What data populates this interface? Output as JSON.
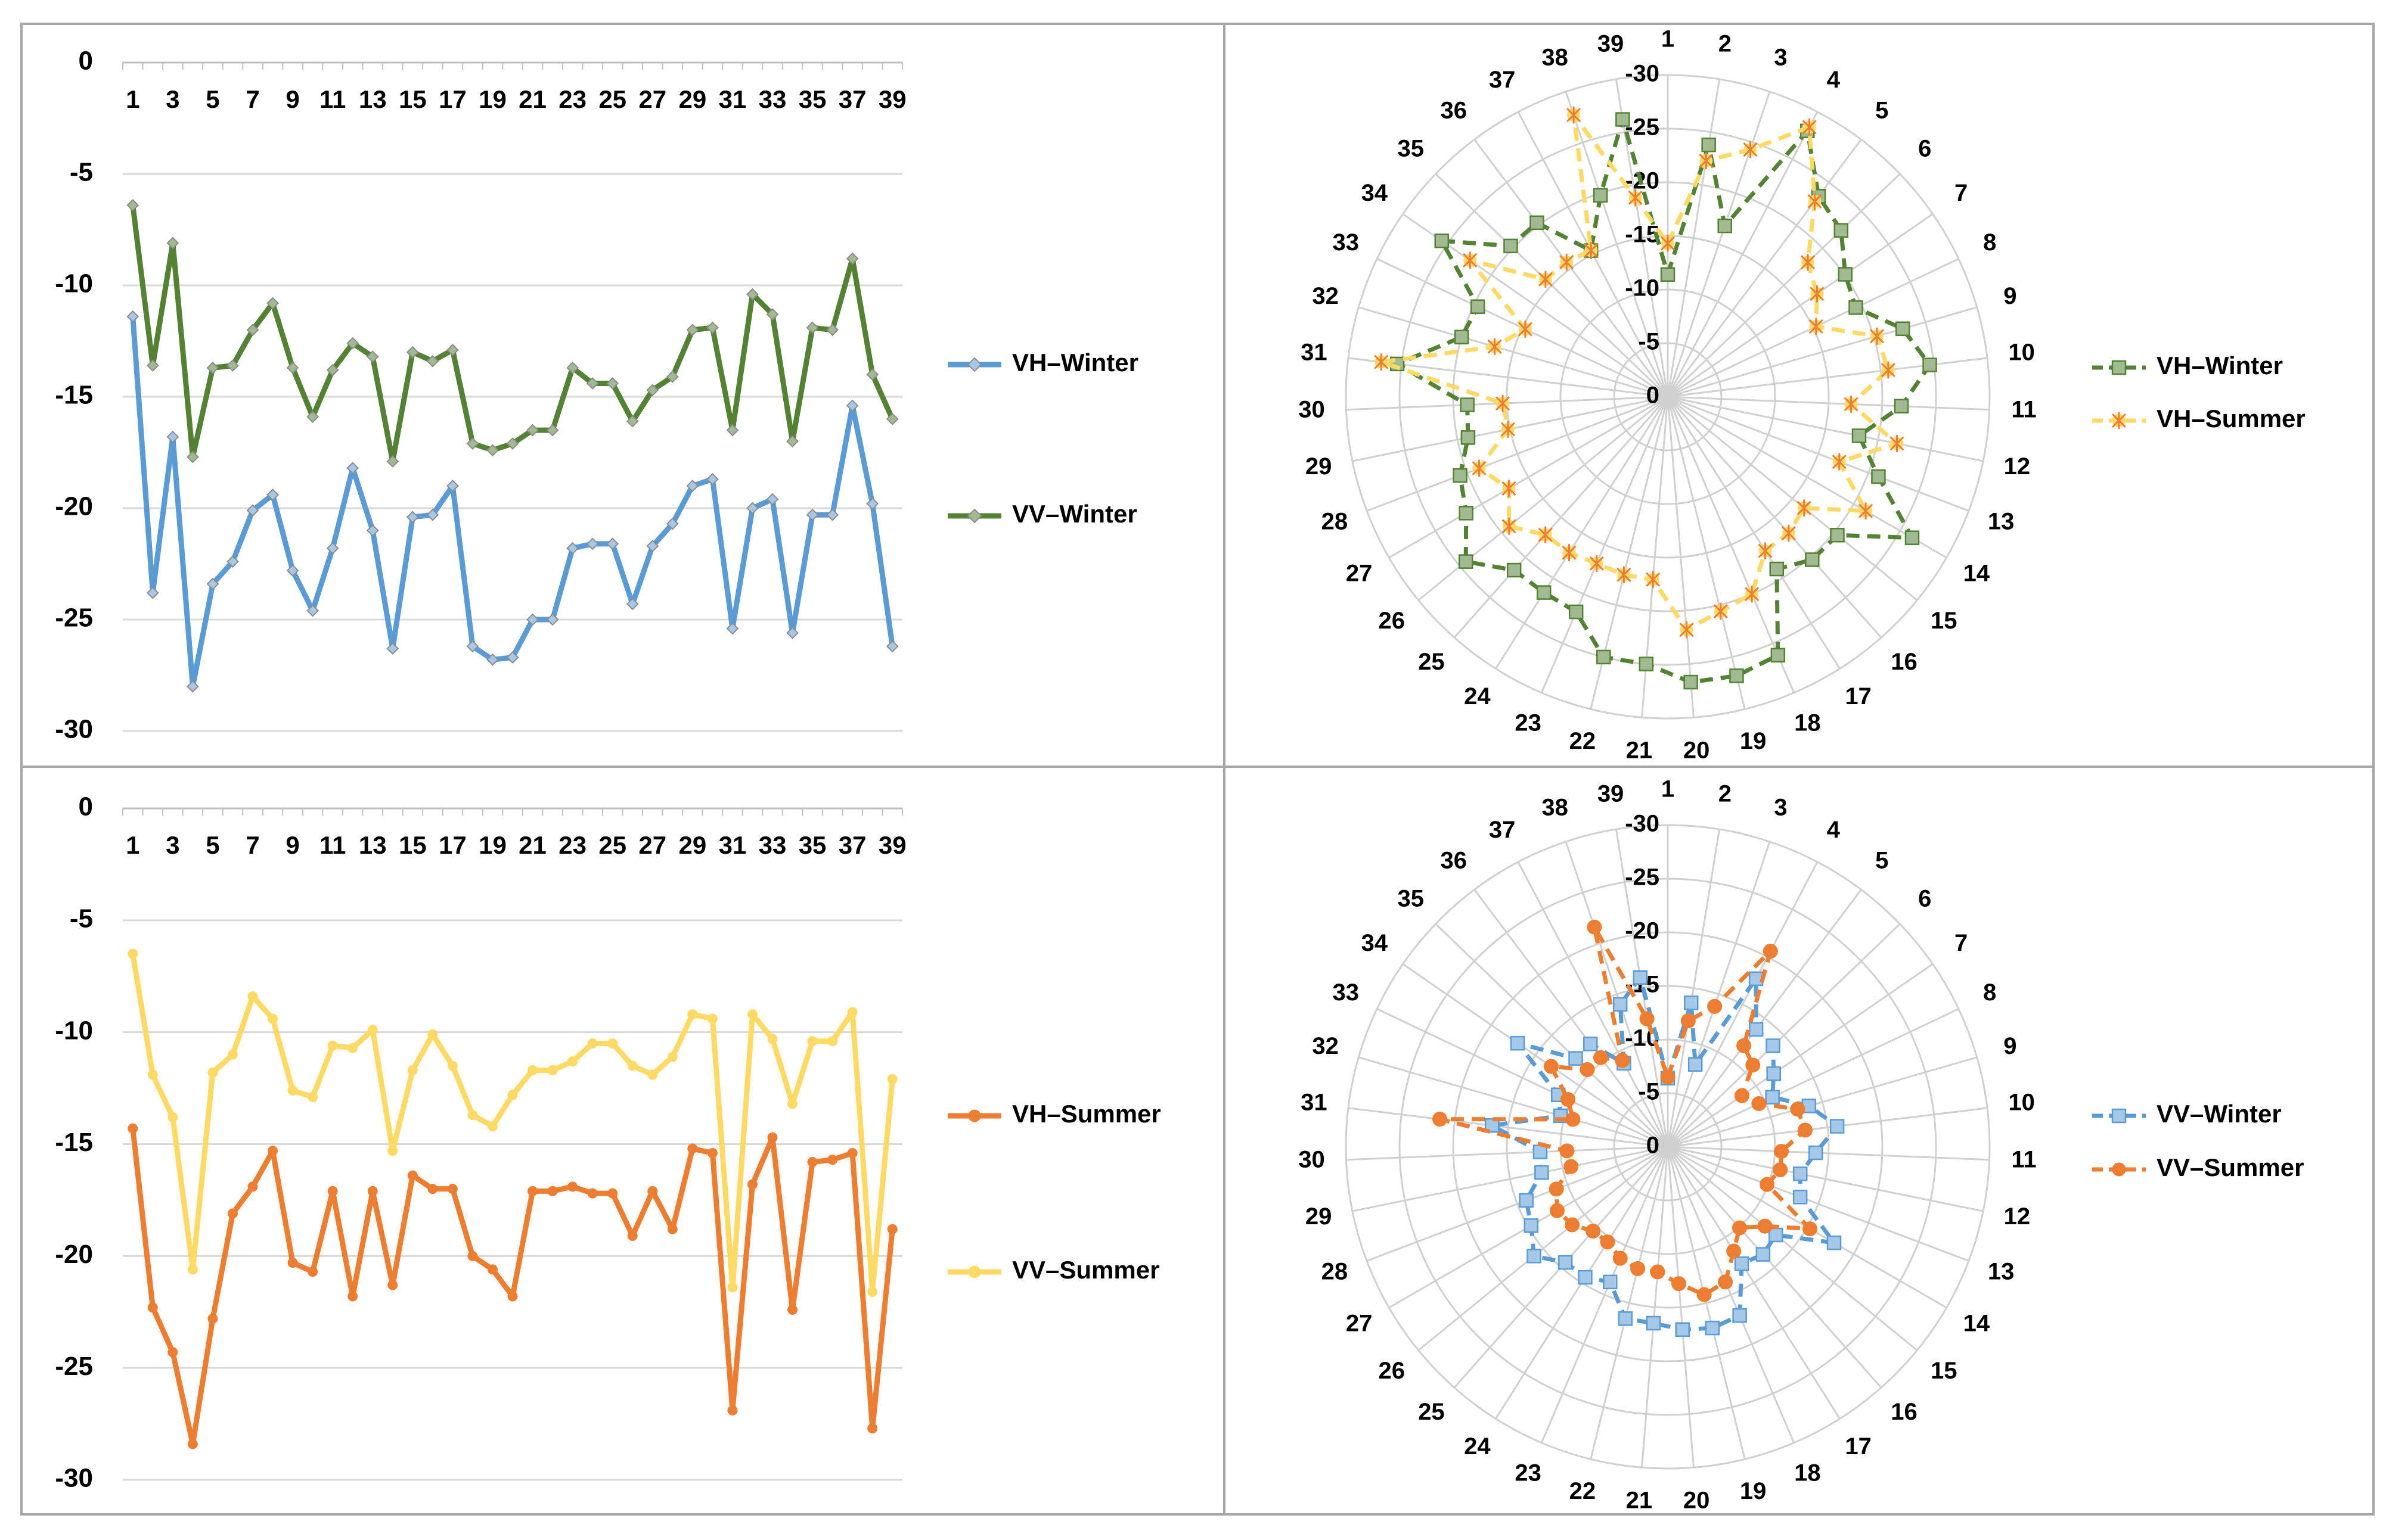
{
  "colors": {
    "vh_winter_line": "#5b9bd5",
    "vv_winter_line": "#548235",
    "vh_summer_line": "#ed7d31",
    "vv_summer_line": "#ffd966",
    "radar_vh_winter": "#548235",
    "radar_vh_summer": "#ffd966",
    "radar_vv_winter": "#5b9bd5",
    "radar_vv_summer": "#ed7d31",
    "grid": "#d0d0d0",
    "frame": "#a6a6a6"
  },
  "chart_data": [
    {
      "type": "line",
      "x": [
        1,
        2,
        3,
        4,
        5,
        6,
        7,
        8,
        9,
        10,
        11,
        12,
        13,
        14,
        15,
        16,
        17,
        18,
        19,
        20,
        21,
        22,
        23,
        24,
        25,
        26,
        27,
        28,
        29,
        30,
        31,
        32,
        33,
        34,
        35,
        36,
        37,
        38,
        39
      ],
      "x_tick_labels": [
        "1",
        "3",
        "5",
        "7",
        "9",
        "11",
        "13",
        "15",
        "17",
        "19",
        "21",
        "23",
        "25",
        "27",
        "29",
        "31",
        "33",
        "35",
        "37",
        "39"
      ],
      "ylim": [
        -30,
        0
      ],
      "y_ticks": [
        "0",
        "-5",
        "-10",
        "-15",
        "-20",
        "-25",
        "-30"
      ],
      "x_axis_position": "top",
      "legend_position": "right",
      "series": [
        {
          "name": "VH–Winter",
          "color_key": "vh_winter_line",
          "marker": "diamond",
          "values": [
            -11.4,
            -23.8,
            -16.8,
            -28.0,
            -23.4,
            -22.4,
            -20.1,
            -19.4,
            -22.8,
            -24.6,
            -21.8,
            -18.2,
            -21.0,
            -26.3,
            -20.4,
            -20.3,
            -19.0,
            -26.2,
            -26.8,
            -26.7,
            -25.0,
            -25.0,
            -21.8,
            -21.6,
            -21.6,
            -24.3,
            -21.7,
            -20.7,
            -19.0,
            -18.7,
            -25.4,
            -20.0,
            -19.6,
            -25.6,
            -20.3,
            -20.3,
            -15.4,
            -19.8,
            -26.2
          ]
        },
        {
          "name": "VV–Winter",
          "color_key": "vv_winter_line",
          "marker": "diamond",
          "values": [
            -6.4,
            -13.6,
            -8.1,
            -17.7,
            -13.7,
            -13.6,
            -12.0,
            -10.8,
            -13.7,
            -15.9,
            -13.8,
            -12.6,
            -13.2,
            -17.9,
            -13.0,
            -13.4,
            -12.9,
            -17.1,
            -17.4,
            -17.1,
            -16.5,
            -16.5,
            -13.7,
            -14.4,
            -14.4,
            -16.1,
            -14.7,
            -14.1,
            -12.0,
            -11.9,
            -16.5,
            -10.4,
            -11.3,
            -17.0,
            -11.9,
            -12.0,
            -8.8,
            -14.0,
            -16.0
          ]
        }
      ]
    },
    {
      "type": "radar",
      "categories": [
        "1",
        "2",
        "3",
        "4",
        "5",
        "6",
        "7",
        "8",
        "9",
        "10",
        "11",
        "12",
        "13",
        "14",
        "15",
        "16",
        "17",
        "18",
        "19",
        "20",
        "21",
        "22",
        "23",
        "24",
        "25",
        "26",
        "27",
        "28",
        "29",
        "30",
        "31",
        "32",
        "33",
        "34",
        "35",
        "36",
        "37",
        "38",
        "39"
      ],
      "r_axis": {
        "min": 0,
        "max": -30,
        "step": -5,
        "labels": [
          "0",
          "-5",
          "-10",
          "-15",
          "-20",
          "-25",
          "-30"
        ]
      },
      "legend_position": "right",
      "series": [
        {
          "name": "VH–Winter",
          "color_key": "radar_vh_winter",
          "marker": "square",
          "values": [
            -11.4,
            -23.8,
            -16.8,
            -28.0,
            -23.4,
            -22.4,
            -20.1,
            -19.4,
            -22.8,
            -24.6,
            -21.8,
            -18.2,
            -21.0,
            -26.3,
            -20.4,
            -20.3,
            -19.0,
            -26.2,
            -26.8,
            -26.7,
            -25.0,
            -25.0,
            -21.8,
            -21.6,
            -21.6,
            -24.3,
            -21.7,
            -20.7,
            -19.0,
            -18.7,
            -25.4,
            -20.0,
            -19.6,
            -25.6,
            -20.3,
            -20.3,
            -15.4,
            -19.8,
            -26.2
          ]
        },
        {
          "name": "VH–Summer",
          "color_key": "radar_vh_summer",
          "marker": "star",
          "values": [
            -14.3,
            -22.3,
            -24.3,
            -28.4,
            -22.8,
            -18.1,
            -16.9,
            -15.3,
            -20.3,
            -20.7,
            -17.1,
            -21.8,
            -17.1,
            -21.3,
            -16.4,
            -17.0,
            -17.0,
            -20.0,
            -20.6,
            -21.8,
            -17.1,
            -17.1,
            -16.9,
            -17.2,
            -17.2,
            -19.1,
            -17.1,
            -18.8,
            -15.2,
            -15.4,
            -26.9,
            -16.8,
            -14.7,
            -22.4,
            -15.8,
            -15.7,
            -15.4,
            -27.7,
            -18.8
          ]
        }
      ]
    },
    {
      "type": "line",
      "x": [
        1,
        2,
        3,
        4,
        5,
        6,
        7,
        8,
        9,
        10,
        11,
        12,
        13,
        14,
        15,
        16,
        17,
        18,
        19,
        20,
        21,
        22,
        23,
        24,
        25,
        26,
        27,
        28,
        29,
        30,
        31,
        32,
        33,
        34,
        35,
        36,
        37,
        38,
        39
      ],
      "x_tick_labels": [
        "1",
        "3",
        "5",
        "7",
        "9",
        "11",
        "13",
        "15",
        "17",
        "19",
        "21",
        "23",
        "25",
        "27",
        "29",
        "31",
        "33",
        "35",
        "37",
        "39"
      ],
      "ylim": [
        -30,
        0
      ],
      "y_ticks": [
        "0",
        "-5",
        "-10",
        "-15",
        "-20",
        "-25",
        "-30"
      ],
      "x_axis_position": "top",
      "legend_position": "right",
      "series": [
        {
          "name": "VH–Summer",
          "color_key": "vh_summer_line",
          "marker": "circle",
          "values": [
            -14.3,
            -22.3,
            -24.3,
            -28.4,
            -22.8,
            -18.1,
            -16.9,
            -15.3,
            -20.3,
            -20.7,
            -17.1,
            -21.8,
            -17.1,
            -21.3,
            -16.4,
            -17.0,
            -17.0,
            -20.0,
            -20.6,
            -21.8,
            -17.1,
            -17.1,
            -16.9,
            -17.2,
            -17.2,
            -19.1,
            -17.1,
            -18.8,
            -15.2,
            -15.4,
            -26.9,
            -16.8,
            -14.7,
            -22.4,
            -15.8,
            -15.7,
            -15.4,
            -27.7,
            -18.8
          ]
        },
        {
          "name": "VV–Summer",
          "color_key": "vv_summer_line",
          "marker": "circle",
          "values": [
            -6.5,
            -11.9,
            -13.8,
            -20.6,
            -11.8,
            -11.0,
            -8.4,
            -9.4,
            -12.6,
            -12.9,
            -10.6,
            -10.7,
            -9.9,
            -15.3,
            -11.7,
            -10.1,
            -11.5,
            -13.7,
            -14.2,
            -12.8,
            -11.7,
            -11.7,
            -11.3,
            -10.5,
            -10.5,
            -11.5,
            -11.9,
            -11.1,
            -9.2,
            -9.4,
            -21.4,
            -9.2,
            -10.3,
            -13.2,
            -10.4,
            -10.4,
            -9.1,
            -21.6,
            -12.1
          ]
        }
      ]
    },
    {
      "type": "radar",
      "categories": [
        "1",
        "2",
        "3",
        "4",
        "5",
        "6",
        "7",
        "8",
        "9",
        "10",
        "11",
        "12",
        "13",
        "14",
        "15",
        "16",
        "17",
        "18",
        "19",
        "20",
        "21",
        "22",
        "23",
        "24",
        "25",
        "26",
        "27",
        "28",
        "29",
        "30",
        "31",
        "32",
        "33",
        "34",
        "35",
        "36",
        "37",
        "38",
        "39"
      ],
      "r_axis": {
        "min": 0,
        "max": -30,
        "step": -5,
        "labels": [
          "0",
          "-5",
          "-10",
          "-15",
          "-20",
          "-25",
          "-30"
        ]
      },
      "legend_position": "right",
      "series": [
        {
          "name": "VV–Winter",
          "color_key": "radar_vv_winter",
          "marker": "square",
          "values": [
            -6.4,
            -13.6,
            -8.1,
            -17.7,
            -13.7,
            -13.6,
            -12.0,
            -10.8,
            -13.7,
            -15.9,
            -13.8,
            -12.6,
            -13.2,
            -17.9,
            -13.0,
            -13.4,
            -12.9,
            -17.1,
            -17.4,
            -17.1,
            -16.5,
            -16.5,
            -13.7,
            -14.4,
            -14.4,
            -16.1,
            -14.7,
            -14.1,
            -12.0,
            -11.9,
            -16.5,
            -10.4,
            -11.3,
            -17.0,
            -11.9,
            -12.0,
            -8.8,
            -14.0,
            -16.0
          ]
        },
        {
          "name": "VV–Summer",
          "color_key": "radar_vv_summer",
          "marker": "circle",
          "values": [
            -6.5,
            -11.9,
            -13.8,
            -20.6,
            -11.8,
            -11.0,
            -8.4,
            -9.4,
            -12.6,
            -12.9,
            -10.6,
            -10.7,
            -9.9,
            -15.3,
            -11.7,
            -10.1,
            -11.5,
            -13.7,
            -14.2,
            -12.8,
            -11.7,
            -11.7,
            -11.3,
            -10.5,
            -10.5,
            -11.5,
            -11.9,
            -11.1,
            -9.2,
            -9.4,
            -21.4,
            -9.2,
            -10.3,
            -13.2,
            -10.4,
            -10.4,
            -9.1,
            -21.6,
            -12.1
          ]
        }
      ]
    }
  ]
}
